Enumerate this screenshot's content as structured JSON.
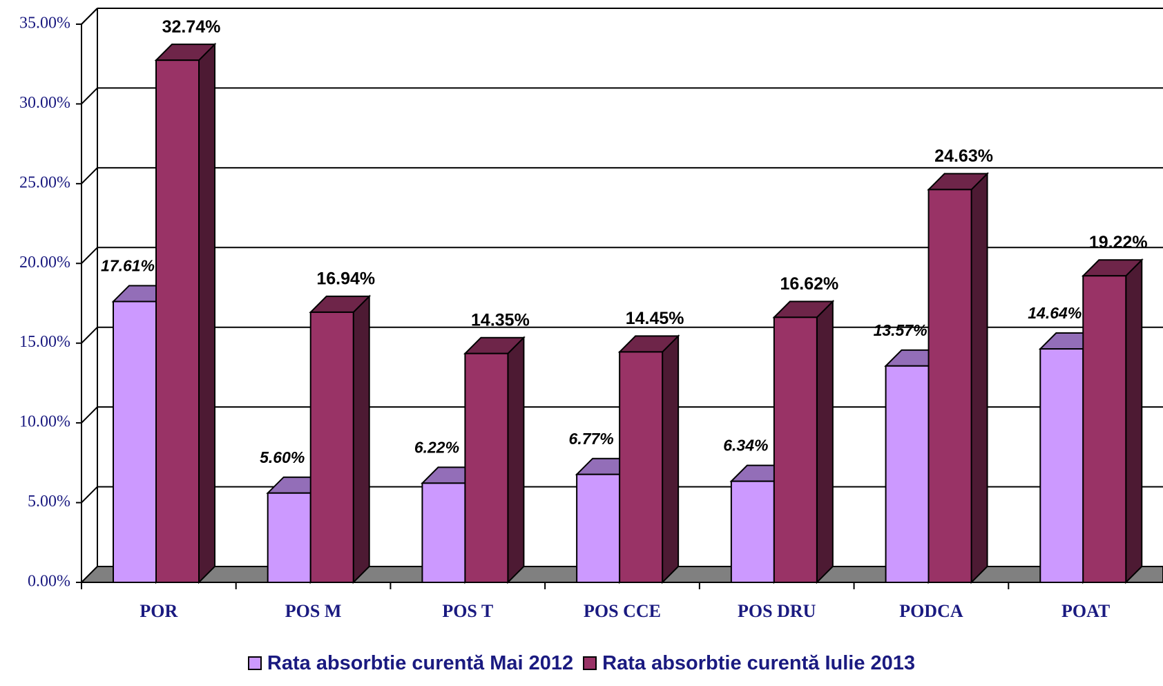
{
  "chart_data": {
    "type": "bar3d",
    "categories": [
      "POR",
      "POS M",
      "POS T",
      "POS CCE",
      "POS DRU",
      "PODCA",
      "POAT"
    ],
    "series": [
      {
        "name": "Rata absorbtie curentă Mai 2012",
        "color": "#cc99ff",
        "values": [
          17.61,
          5.6,
          6.22,
          6.77,
          6.34,
          13.57,
          14.64
        ],
        "value_labels": [
          "17.61%",
          "5.60%",
          "6.22%",
          "6.77%",
          "6.34%",
          "13.57%",
          "14.64%"
        ]
      },
      {
        "name": "Rata absorbtie curentă Iulie 2013",
        "color": "#993366",
        "values": [
          32.74,
          16.94,
          14.35,
          14.45,
          16.62,
          24.63,
          19.22
        ],
        "value_labels": [
          "32.74%",
          "16.94%",
          "14.35%",
          "14.45%",
          "16.62%",
          "24.63%",
          "19.22%"
        ]
      }
    ],
    "ylim": [
      0,
      35
    ],
    "yticks": [
      {
        "value": 0,
        "label": "0.00%"
      },
      {
        "value": 5,
        "label": "5.00%"
      },
      {
        "value": 10,
        "label": "10.00%"
      },
      {
        "value": 15,
        "label": "15.00%"
      },
      {
        "value": 20,
        "label": "20.00%"
      },
      {
        "value": 25,
        "label": "25.00%"
      },
      {
        "value": 30,
        "label": "30.00%"
      },
      {
        "value": 35,
        "label": "35.00%"
      }
    ],
    "grid": true,
    "legend": "bottom"
  }
}
